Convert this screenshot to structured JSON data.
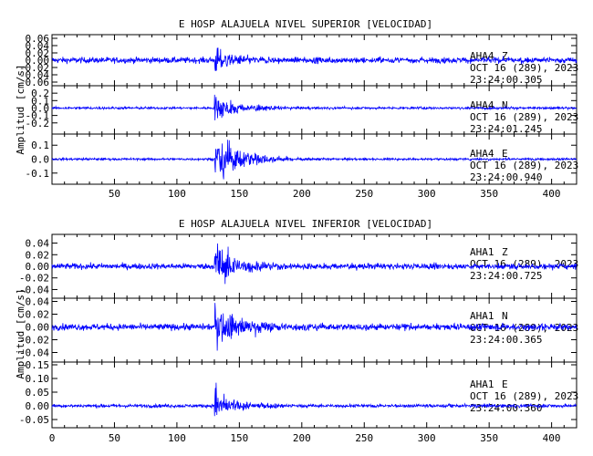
{
  "chart_data": [
    {
      "type": "line",
      "title": "E HOSP ALAJUELA NIVEL SUPERIOR [VELOCIDAD]",
      "ylabel": "Amplitud [cm/s]",
      "xlim": [
        0,
        420
      ],
      "xticks": [
        50,
        100,
        150,
        200,
        250,
        300,
        350,
        400
      ],
      "series_color": "#0000ff",
      "series": [
        {
          "station": "AHA4",
          "component": "Z",
          "date": "OCT 16 (289), 2023",
          "time": "23:24:00.305",
          "ylim": [
            -0.07,
            0.07
          ],
          "yticks": [
            0.06,
            0.04,
            0.02,
            0.0,
            -0.02,
            -0.04,
            -0.06
          ],
          "yticklabels": [
            "0.06",
            "0.04",
            "0.02",
            "0.00",
            "-0.02",
            "-0.04",
            "-0.06"
          ],
          "noise_amp": 0.004,
          "onset": 130,
          "peak_amp": 0.04,
          "envelope": [
            [
              130,
              0.9
            ],
            [
              138,
              0.5
            ],
            [
              150,
              0.2
            ],
            [
              175,
              0.06
            ]
          ]
        },
        {
          "station": "AHA4",
          "component": "N",
          "date": "OCT 16 (289), 2023",
          "time": "23:24:01.245",
          "ylim": [
            -0.35,
            0.3
          ],
          "yticks": [
            0.2,
            0.1,
            0.0,
            -0.1,
            -0.2
          ],
          "yticklabels": [
            "0.2",
            "0.1",
            "0.0",
            "-0.1",
            "-0.2"
          ],
          "noise_amp": 0.008,
          "onset": 130,
          "peak_amp": 0.18,
          "envelope": [
            [
              130,
              0.9
            ],
            [
              140,
              0.55
            ],
            [
              155,
              0.25
            ],
            [
              190,
              0.06
            ]
          ]
        },
        {
          "station": "AHA4",
          "component": "E",
          "date": "OCT 16 (289), 2023",
          "time": "23:24:00.940",
          "ylim": [
            -0.18,
            0.18
          ],
          "yticks": [
            0.1,
            0.0,
            -0.1
          ],
          "yticklabels": [
            "0.1",
            "0.0",
            "-0.1"
          ],
          "noise_amp": 0.004,
          "onset": 130,
          "peak_amp": 0.13,
          "envelope": [
            [
              130,
              0.7
            ],
            [
              135,
              1.0
            ],
            [
              150,
              0.5
            ],
            [
              175,
              0.15
            ],
            [
              200,
              0.04
            ]
          ]
        }
      ]
    },
    {
      "type": "line",
      "title": "E HOSP ALAJUELA NIVEL INFERIOR [VELOCIDAD]",
      "ylabel": "Amplitud [cm/s]",
      "xlim": [
        0,
        420
      ],
      "xticks": [
        0,
        50,
        100,
        150,
        200,
        250,
        300,
        350,
        400
      ],
      "series_color": "#0000ff",
      "series": [
        {
          "station": "AHA1",
          "component": "Z",
          "date": "OCT 16 (289), 2023",
          "time": "23:24:00.725",
          "ylim": [
            -0.055,
            0.055
          ],
          "yticks": [
            0.04,
            0.02,
            0.0,
            -0.02,
            -0.04
          ],
          "yticklabels": [
            "0.04",
            "0.02",
            "0.00",
            "-0.02",
            "-0.04"
          ],
          "noise_amp": 0.0025,
          "onset": 130,
          "peak_amp": 0.045,
          "envelope": [
            [
              130,
              1.0
            ],
            [
              138,
              0.55
            ],
            [
              150,
              0.25
            ],
            [
              180,
              0.06
            ]
          ]
        },
        {
          "station": "AHA1",
          "component": "N",
          "date": "OCT 16 (289), 2023",
          "time": "23:24:00.365",
          "ylim": [
            -0.055,
            0.045
          ],
          "yticks": [
            0.04,
            0.02,
            0.0,
            -0.02,
            -0.04
          ],
          "yticklabels": [
            "0.04",
            "0.02",
            "0.00",
            "-0.02",
            "-0.04"
          ],
          "noise_amp": 0.0025,
          "onset": 130,
          "peak_amp": 0.03,
          "envelope": [
            [
              130,
              1.0
            ],
            [
              140,
              0.65
            ],
            [
              155,
              0.35
            ],
            [
              190,
              0.08
            ]
          ]
        },
        {
          "station": "AHA1",
          "component": "E",
          "date": "OCT 16 (289), 2023",
          "time": "23:24:00.360",
          "ylim": [
            -0.08,
            0.16
          ],
          "yticks": [
            0.15,
            0.1,
            0.05,
            0.0,
            -0.05
          ],
          "yticklabels": [
            "0.15",
            "0.10",
            "0.05",
            "0.00",
            "-0.05"
          ],
          "noise_amp": 0.003,
          "onset": 130,
          "peak_amp": 0.1,
          "envelope": [
            [
              130,
              1.0
            ],
            [
              134,
              0.35
            ],
            [
              150,
              0.15
            ],
            [
              180,
              0.05
            ]
          ]
        }
      ]
    }
  ]
}
